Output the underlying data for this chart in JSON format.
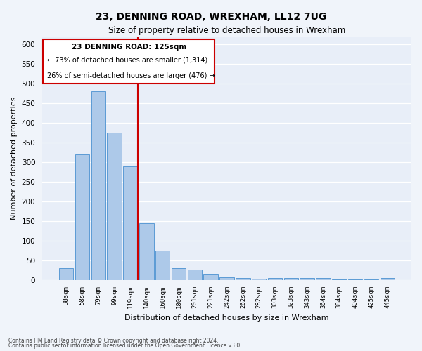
{
  "title1": "23, DENNING ROAD, WREXHAM, LL12 7UG",
  "title2": "Size of property relative to detached houses in Wrexham",
  "xlabel": "Distribution of detached houses by size in Wrexham",
  "ylabel": "Number of detached properties",
  "categories": [
    "38sqm",
    "58sqm",
    "79sqm",
    "99sqm",
    "119sqm",
    "140sqm",
    "160sqm",
    "180sqm",
    "201sqm",
    "221sqm",
    "242sqm",
    "262sqm",
    "282sqm",
    "303sqm",
    "323sqm",
    "343sqm",
    "364sqm",
    "384sqm",
    "404sqm",
    "425sqm",
    "445sqm"
  ],
  "values": [
    30,
    320,
    480,
    375,
    290,
    145,
    75,
    30,
    28,
    15,
    8,
    5,
    4,
    5,
    5,
    5,
    5,
    3,
    3,
    3,
    5
  ],
  "bar_color": "#adc9e9",
  "bar_edge_color": "#5b9bd5",
  "highlight_label": "23 DENNING ROAD: 125sqm",
  "annotation_line1": "← 73% of detached houses are smaller (1,314)",
  "annotation_line2": "26% of semi-detached houses are larger (476) →",
  "box_color": "#cc0000",
  "ylim": [
    0,
    620
  ],
  "yticks": [
    0,
    50,
    100,
    150,
    200,
    250,
    300,
    350,
    400,
    450,
    500,
    550,
    600
  ],
  "footer1": "Contains HM Land Registry data © Crown copyright and database right 2024.",
  "footer2": "Contains public sector information licensed under the Open Government Licence v3.0.",
  "bg_color": "#f0f4fa",
  "plot_bg_color": "#e8eef8"
}
